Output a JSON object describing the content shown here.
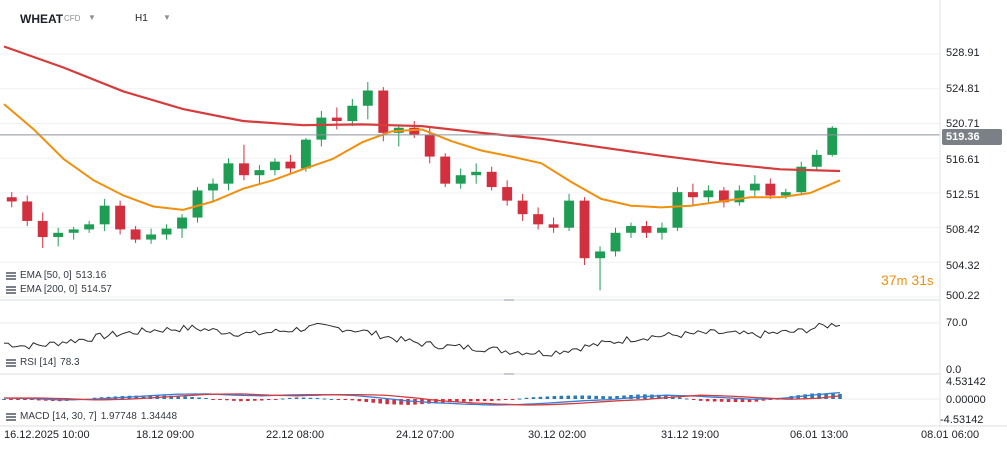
{
  "header": {
    "symbol": "WHEAT",
    "instrument_type": "CFD",
    "timeframe": "H1"
  },
  "indicators": {
    "ema50": {
      "label": "EMA [50, 0]",
      "value": "513.16",
      "color": "#f0900e"
    },
    "ema200": {
      "label": "EMA [200, 0]",
      "value": "514.57",
      "color": "#d63c3c"
    },
    "rsi": {
      "label": "RSI [14]",
      "value": "78.3"
    },
    "macd": {
      "label": "MACD [14, 30, 7]",
      "value1": "1.97748",
      "value2": "1.34448"
    }
  },
  "countdown": {
    "minutes": "37",
    "minutes_unit": "m",
    "seconds": "31",
    "seconds_unit": "s"
  },
  "current_price": "519.36",
  "price_axis": [
    "528.91",
    "524.81",
    "520.71",
    "516.61",
    "512.51",
    "508.42",
    "504.32",
    "500.22"
  ],
  "rsi_axis": [
    "70.0",
    "0.0"
  ],
  "macd_axis": [
    "4.53142",
    "0.00000",
    "-4.53142"
  ],
  "time_axis": [
    "16.12.2025 10:00",
    "18.12 09:00",
    "22.12 08:00",
    "24.12 07:00",
    "30.12 02:00",
    "31.12 19:00",
    "06.01 13:00",
    "08.01 06:00"
  ],
  "colors": {
    "up": "#1f9d55",
    "down": "#d3303f",
    "ema50": "#f0900e",
    "ema200": "#d63c3c",
    "rsi": "#2b2b2b",
    "macd_line": "#3a7bd5",
    "signal_line": "#d63c3c",
    "hist": "#2a7ab0"
  },
  "chart_data": {
    "type": "line",
    "series": [
      {
        "name": "EMA [200, 0]",
        "x_index": [
          0,
          30,
          60,
          90,
          120,
          150,
          180,
          210,
          240,
          270,
          300,
          330,
          360,
          390,
          420
        ],
        "values": [
          529.8,
          527.3,
          524.5,
          522.4,
          521.0,
          520.5,
          520.6,
          520.4,
          519.6,
          518.9,
          517.9,
          516.9,
          516.0,
          515.3,
          515.1
        ]
      },
      {
        "name": "EMA [50, 0]",
        "x_index": [
          0,
          15,
          30,
          45,
          60,
          75,
          90,
          105,
          120,
          135,
          150,
          165,
          180,
          195,
          210,
          225,
          240,
          255,
          270,
          285,
          300,
          315,
          330,
          345,
          360,
          375,
          390,
          405,
          420
        ],
        "values": [
          523.0,
          520.0,
          516.5,
          514.0,
          512.2,
          510.9,
          510.5,
          511.5,
          513.0,
          514.0,
          515.3,
          516.5,
          518.5,
          519.8,
          520.0,
          518.6,
          517.5,
          516.8,
          516.0,
          513.8,
          511.8,
          511.0,
          510.8,
          511.0,
          511.5,
          512.0,
          512.0,
          512.5,
          514.0
        ]
      }
    ],
    "candles_ohlc_sampled": [
      [
        512.0,
        512.6,
        510.8,
        511.5
      ],
      [
        511.5,
        512.2,
        508.6,
        509.2
      ],
      [
        509.2,
        510.2,
        506.0,
        507.3
      ],
      [
        507.3,
        508.4,
        506.2,
        507.8
      ],
      [
        507.8,
        508.5,
        507.0,
        508.2
      ],
      [
        508.2,
        509.2,
        507.8,
        508.8
      ],
      [
        508.8,
        511.8,
        508.0,
        511.0
      ],
      [
        511.0,
        511.6,
        507.6,
        508.2
      ],
      [
        508.2,
        508.6,
        506.6,
        507.0
      ],
      [
        507.0,
        508.3,
        506.5,
        507.6
      ],
      [
        507.6,
        508.8,
        507.0,
        508.3
      ],
      [
        508.3,
        510.0,
        507.2,
        509.6
      ],
      [
        509.6,
        513.2,
        509.0,
        512.8
      ],
      [
        512.8,
        514.2,
        511.6,
        513.6
      ],
      [
        513.6,
        516.6,
        512.8,
        516.0
      ],
      [
        516.0,
        518.2,
        514.0,
        514.6
      ],
      [
        514.6,
        515.8,
        513.6,
        515.2
      ],
      [
        515.2,
        516.6,
        514.6,
        516.2
      ],
      [
        516.2,
        517.0,
        514.8,
        515.4
      ],
      [
        515.4,
        519.0,
        515.0,
        518.8
      ],
      [
        518.8,
        522.2,
        518.0,
        521.4
      ],
      [
        521.4,
        522.6,
        520.0,
        521.0
      ],
      [
        521.0,
        523.6,
        520.4,
        522.8
      ],
      [
        522.8,
        525.6,
        521.2,
        524.6
      ],
      [
        524.6,
        525.0,
        518.6,
        519.6
      ],
      [
        519.6,
        520.6,
        518.0,
        520.2
      ],
      [
        520.2,
        521.0,
        519.0,
        519.4
      ],
      [
        519.4,
        520.2,
        516.0,
        516.8
      ],
      [
        516.8,
        517.2,
        513.2,
        513.6
      ],
      [
        513.6,
        515.4,
        513.0,
        514.6
      ],
      [
        514.6,
        516.0,
        513.6,
        515.0
      ],
      [
        515.0,
        515.6,
        512.8,
        513.2
      ],
      [
        513.2,
        514.0,
        511.0,
        511.6
      ],
      [
        511.6,
        512.4,
        509.2,
        510.0
      ],
      [
        510.0,
        510.8,
        508.2,
        508.8
      ],
      [
        508.8,
        509.6,
        507.8,
        508.4
      ],
      [
        508.4,
        512.4,
        508.0,
        511.6
      ],
      [
        511.6,
        512.0,
        504.0,
        504.8
      ],
      [
        504.8,
        506.2,
        501.0,
        505.6
      ],
      [
        505.6,
        508.4,
        505.0,
        507.8
      ],
      [
        507.8,
        509.0,
        507.2,
        508.6
      ],
      [
        508.6,
        509.2,
        507.2,
        507.8
      ],
      [
        507.8,
        509.0,
        507.0,
        508.4
      ],
      [
        508.4,
        513.2,
        508.0,
        512.6
      ],
      [
        512.6,
        513.6,
        511.0,
        512.0
      ],
      [
        512.0,
        513.4,
        511.4,
        512.8
      ],
      [
        512.8,
        513.2,
        510.8,
        511.4
      ],
      [
        511.4,
        513.4,
        511.0,
        512.8
      ],
      [
        512.8,
        514.6,
        512.0,
        513.6
      ],
      [
        513.6,
        514.2,
        511.8,
        512.2
      ],
      [
        512.2,
        513.0,
        511.8,
        512.6
      ],
      [
        512.6,
        516.2,
        512.2,
        515.6
      ],
      [
        515.6,
        517.6,
        515.2,
        517.0
      ],
      [
        517.0,
        520.4,
        516.8,
        520.2
      ]
    ]
  }
}
